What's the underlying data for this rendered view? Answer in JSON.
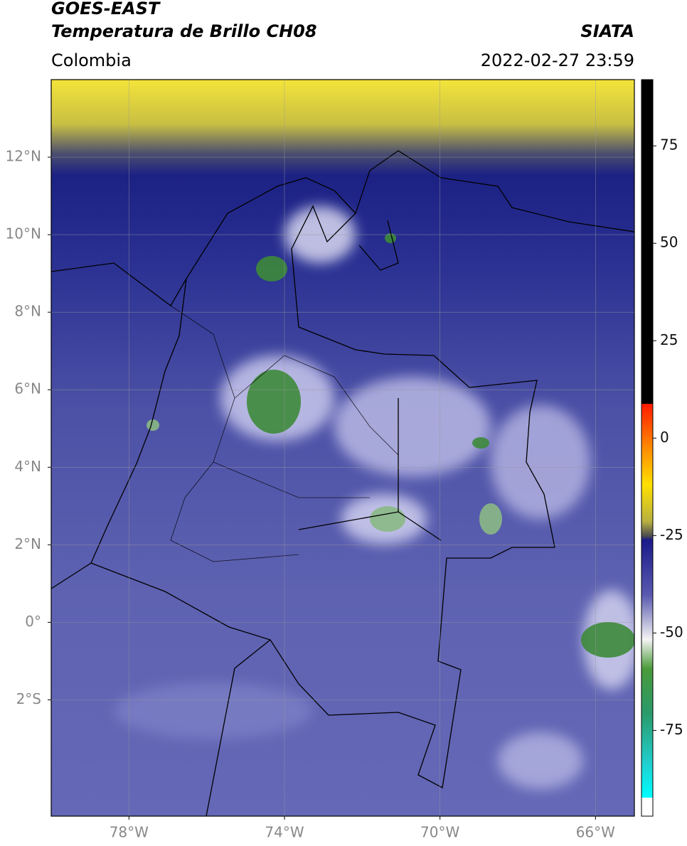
{
  "header": {
    "title": "GOES-EAST",
    "subtitle": "Temperatura de Brillo CH08",
    "source": "SIATA",
    "region": "Colombia",
    "datetime": "2022-02-27 23:59"
  },
  "map": {
    "xlim": [
      -80,
      -65
    ],
    "ylim": [
      -5,
      14
    ],
    "xticks": [
      {
        "value": -78,
        "label": "78°W"
      },
      {
        "value": -74,
        "label": "74°W"
      },
      {
        "value": -70,
        "label": "70°W"
      },
      {
        "value": -66,
        "label": "66°W"
      }
    ],
    "yticks": [
      {
        "value": 12,
        "label": "12°N"
      },
      {
        "value": 10,
        "label": "10°N"
      },
      {
        "value": 8,
        "label": "8°N"
      },
      {
        "value": 6,
        "label": "6°N"
      },
      {
        "value": 4,
        "label": "4°N"
      },
      {
        "value": 2,
        "label": "2°N"
      },
      {
        "value": 0,
        "label": "0°"
      },
      {
        "value": -2,
        "label": "2°S"
      }
    ],
    "grid": true
  },
  "colorbar": {
    "lim": [
      -97,
      92
    ],
    "ticks": [
      75,
      50,
      25,
      0,
      -25,
      -50,
      -75
    ]
  }
}
